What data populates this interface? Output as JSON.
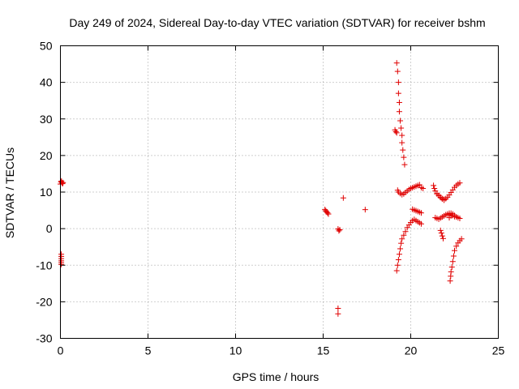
{
  "chart_data": {
    "type": "scatter",
    "title": "Day 249 of 2024, Sidereal Day-to-day VTEC variation (SDTVAR) for receiver bshm",
    "xlabel": "GPS time / hours",
    "ylabel": "SDTVAR / TECUs",
    "xlim": [
      0,
      25
    ],
    "ylim": [
      -30,
      50
    ],
    "xticks": [
      0,
      5,
      10,
      15,
      20,
      25
    ],
    "yticks": [
      -30,
      -20,
      -10,
      0,
      10,
      20,
      30,
      40,
      50
    ],
    "grid": true,
    "marker": "plus",
    "marker_color": "#e00000",
    "series": [
      {
        "name": "SDTVAR",
        "x": [
          0.0,
          0.03,
          0.06,
          0.09,
          0.12,
          0.15,
          0.05,
          0.05,
          0.05,
          0.05,
          0.05,
          0.05,
          15.1,
          15.15,
          15.2,
          15.25,
          15.3,
          15.85,
          15.9,
          15.95,
          15.85,
          15.85,
          16.15,
          17.4,
          19.1,
          19.15,
          19.2,
          19.2,
          19.25,
          19.3,
          19.3,
          19.35,
          19.35,
          19.4,
          19.45,
          19.5,
          19.5,
          19.55,
          19.6,
          19.65,
          19.25,
          19.3,
          19.4,
          19.5,
          19.6,
          19.7,
          19.8,
          19.9,
          20.0,
          20.1,
          20.2,
          20.3,
          20.4,
          20.5,
          20.6,
          20.7,
          19.2,
          19.25,
          19.3,
          19.35,
          19.4,
          19.45,
          19.5,
          19.6,
          19.7,
          19.8,
          19.9,
          20.0,
          20.1,
          20.2,
          20.3,
          20.4,
          20.5,
          20.6,
          20.1,
          20.2,
          20.3,
          20.4,
          20.5,
          20.6,
          21.3,
          21.35,
          21.4,
          21.5,
          21.6,
          21.7,
          21.8,
          21.9,
          21.4,
          21.5,
          21.6,
          21.7,
          21.8,
          21.9,
          22.0,
          22.1,
          22.2,
          21.5,
          21.6,
          21.7,
          21.8,
          21.9,
          22.0,
          22.1,
          22.2,
          22.3,
          22.4,
          22.5,
          22.6,
          22.7,
          22.8,
          21.7,
          21.75,
          21.8,
          21.85,
          22.2,
          22.3,
          22.4,
          22.5,
          22.6,
          22.7,
          22.8,
          22.25,
          22.28,
          22.3,
          22.35,
          22.4,
          22.45,
          22.5,
          22.6,
          22.7,
          22.8,
          22.9,
          22.2,
          22.3,
          22.4,
          22.5
        ],
        "y": [
          12.2,
          12.8,
          13.0,
          12.5,
          12.3,
          12.6,
          -7.0,
          -7.6,
          -8.2,
          -8.8,
          -9.3,
          -9.8,
          5.2,
          4.9,
          4.6,
          4.3,
          4.0,
          -0.1,
          -0.6,
          -0.3,
          -21.8,
          -23.3,
          8.4,
          5.2,
          27.0,
          26.5,
          26.2,
          45.3,
          43.0,
          40.0,
          37.0,
          34.5,
          32.0,
          29.5,
          27.5,
          25.5,
          23.5,
          21.5,
          19.5,
          17.5,
          10.5,
          10.0,
          9.6,
          9.3,
          9.5,
          9.9,
          10.3,
          10.7,
          11.0,
          11.2,
          11.4,
          11.6,
          11.8,
          12.0,
          11.2,
          11.0,
          -11.5,
          -10.0,
          -8.5,
          -7.0,
          -5.5,
          -4.0,
          -2.8,
          -1.8,
          -0.8,
          0.3,
          1.0,
          1.7,
          2.2,
          2.5,
          2.2,
          1.9,
          1.6,
          1.3,
          5.3,
          5.1,
          4.9,
          4.7,
          4.5,
          4.3,
          11.8,
          11.0,
          10.3,
          9.6,
          9.1,
          8.6,
          8.2,
          8.0,
          3.0,
          2.8,
          2.6,
          2.9,
          3.2,
          3.5,
          3.8,
          4.0,
          4.2,
          9.5,
          9.0,
          8.5,
          8.1,
          7.8,
          8.2,
          8.6,
          9.2,
          9.9,
          10.6,
          11.3,
          11.8,
          12.2,
          12.5,
          -0.5,
          -1.2,
          -2.0,
          -2.7,
          3.0,
          3.5,
          4.0,
          3.6,
          3.2,
          3.0,
          2.8,
          -14.3,
          -13.0,
          -11.8,
          -10.5,
          -9.0,
          -7.5,
          -6.0,
          -4.8,
          -3.9,
          -3.3,
          -2.8,
          3.8,
          4.2,
          3.6,
          3.3
        ]
      }
    ]
  }
}
